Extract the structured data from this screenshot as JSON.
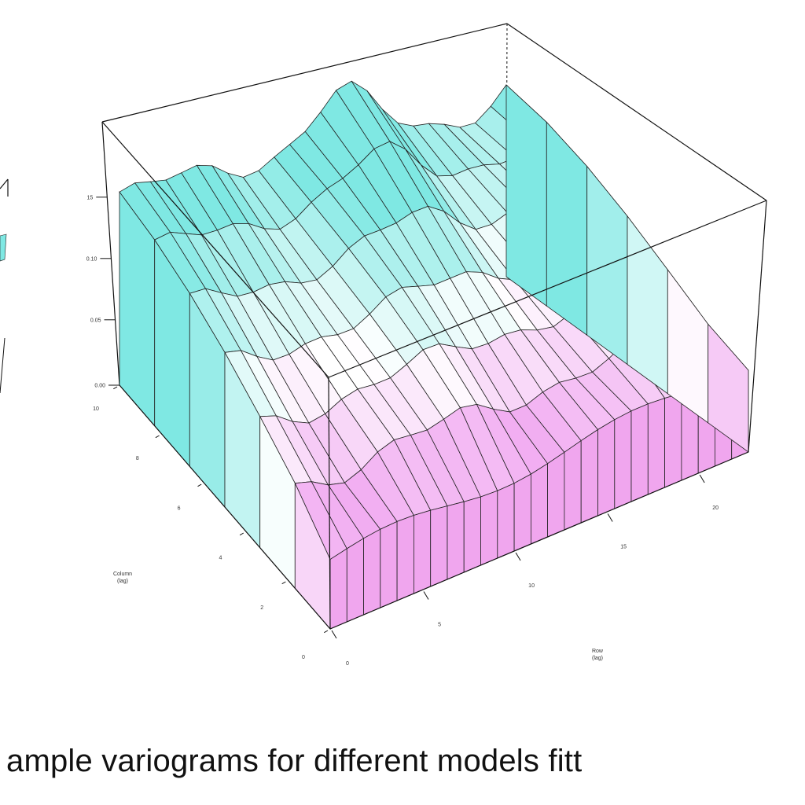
{
  "caption": "ample variograms for different models fitt",
  "chart_data": {
    "type": "surface",
    "title": "",
    "z_ticks": [
      "15",
      "0.10",
      "0.05",
      "0.00"
    ],
    "x_axis": {
      "label": [
        "Row",
        "(lag)"
      ],
      "ticks": [
        "0",
        "5",
        "10",
        "15",
        "20"
      ]
    },
    "y_axis": {
      "label": [
        "Column",
        "(lag)"
      ],
      "ticks": [
        "0",
        "2",
        "4",
        "6",
        "8",
        "10"
      ]
    },
    "colors": {
      "high": "#7fe8e3",
      "mid": "#ffffff",
      "low": "#ee99ee",
      "edge": "#222222"
    },
    "grid": false,
    "note_partial_panel_left": true
  }
}
